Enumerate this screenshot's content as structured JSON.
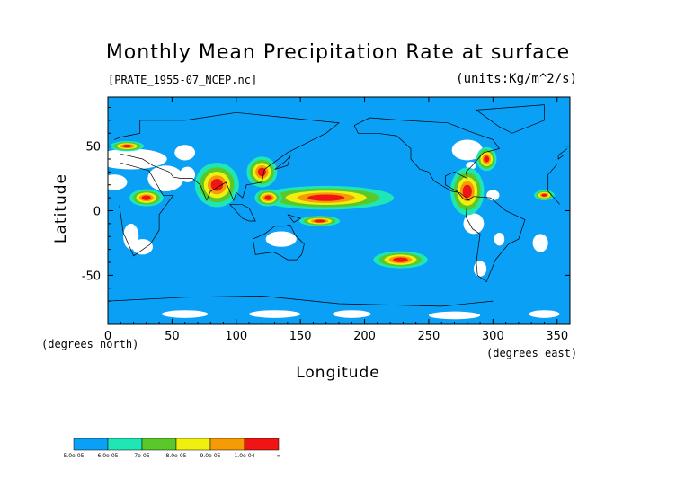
{
  "chart_data": {
    "type": "heatmap",
    "title": "Monthly Mean Precipitation Rate at surface",
    "subtitle": "[PRATE_1955-07_NCEP.nc]",
    "units": "(units:Kg/m^2/s)",
    "xlabel": "Longitude",
    "ylabel": "Latitude",
    "x_unit_label": "(degrees_east)",
    "y_unit_label": "(degrees_north)",
    "xlim": [
      0,
      360
    ],
    "ylim": [
      -88,
      88
    ],
    "x_ticks": [
      0,
      50,
      100,
      150,
      200,
      250,
      300,
      350
    ],
    "y_ticks": [
      -50,
      0,
      50
    ],
    "colorbar": {
      "labels": [
        "5.0e-05",
        "6.0e-05",
        "7e-05",
        "8.0e-05",
        "9.0e-05",
        "1.0e-04",
        "∞"
      ],
      "colors": [
        "#0aa0f5",
        "#1ee6b4",
        "#5ac828",
        "#f0f010",
        "#f59b05",
        "#f01414"
      ],
      "background": "#ffffff"
    },
    "regions": [
      {
        "level": 5,
        "lon": 170,
        "lat": 10,
        "rlon": 40,
        "rlat": 7
      },
      {
        "level": 5,
        "lon": 85,
        "lat": 20,
        "rlon": 13,
        "rlat": 13
      },
      {
        "level": 5,
        "lon": 280,
        "lat": 15,
        "rlon": 10,
        "rlat": 14
      },
      {
        "level": 5,
        "lon": 30,
        "lat": 10,
        "rlon": 10,
        "rlat": 5
      },
      {
        "level": 5,
        "lon": 228,
        "lat": -38,
        "rlon": 16,
        "rlat": 5
      },
      {
        "level": 5,
        "lon": 165,
        "lat": -8,
        "rlon": 12,
        "rlat": 3
      },
      {
        "level": 5,
        "lon": 120,
        "lat": 30,
        "rlon": 9,
        "rlat": 9
      },
      {
        "level": 5,
        "lon": 15,
        "lat": 50,
        "rlon": 10,
        "rlat": 3
      },
      {
        "level": 5,
        "lon": 340,
        "lat": 12,
        "rlon": 6,
        "rlat": 3
      },
      {
        "level": 5,
        "lon": 295,
        "lat": 40,
        "rlon": 6,
        "rlat": 7
      },
      {
        "level": 5,
        "lon": 125,
        "lat": 10,
        "rlon": 8,
        "rlat": 5
      }
    ]
  }
}
